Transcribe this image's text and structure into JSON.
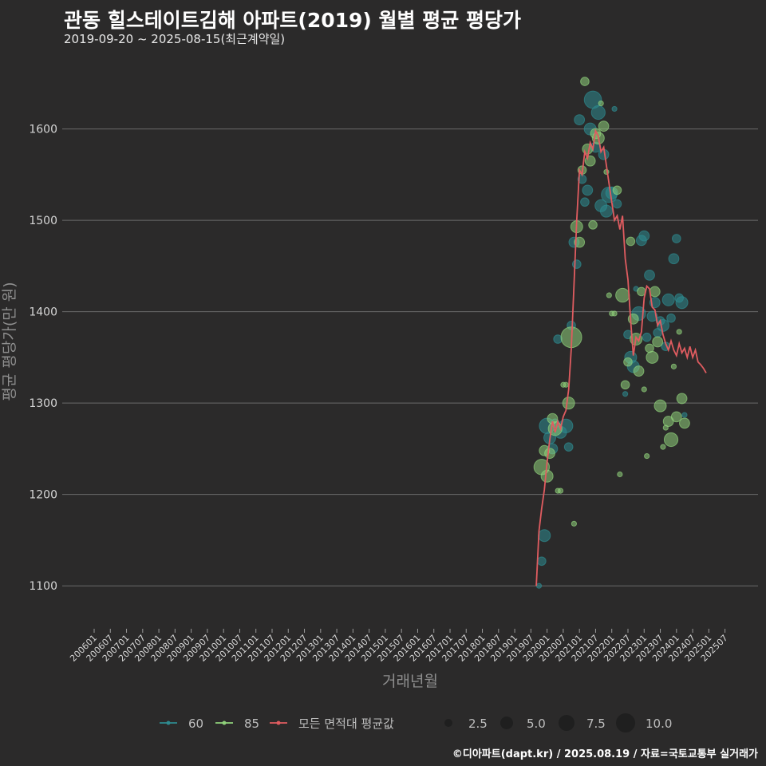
{
  "header": {
    "title": "관동 힐스테이트김해 아파트(2019) 월별 평균 평당가",
    "subtitle": "2019-09-20 ~ 2025-08-15(최근계약일)"
  },
  "caption": "©디아파트(dapt.kr) / 2025.08.19 / 자료=국토교통부 실거래가",
  "colors": {
    "background": "#2b2a2a",
    "grid": "#6b6b6b",
    "text": "#d6d6d6",
    "axis_title": "#8e8e8e",
    "series_60": "#2e8a8f",
    "series_85": "#8fd07a",
    "average": "#e05c60"
  },
  "chart_data": {
    "type": "scatter",
    "xlabel": "거래년월",
    "ylabel": "평균 평당가(만 원)",
    "ylim": [
      1060,
      1680
    ],
    "yticks": [
      1100,
      1200,
      1300,
      1400,
      1500,
      1600
    ],
    "x_start": "200601",
    "x_end": "202508",
    "xtick_labels": [
      "200601",
      "200607",
      "200701",
      "200707",
      "200801",
      "200807",
      "200901",
      "200907",
      "201001",
      "201007",
      "201101",
      "201107",
      "201201",
      "201207",
      "201301",
      "201307",
      "201401",
      "201407",
      "201501",
      "201507",
      "201601",
      "201607",
      "201701",
      "201707",
      "201801",
      "201807",
      "201901",
      "201907",
      "202001",
      "202007",
      "202101",
      "202107",
      "202201",
      "202207",
      "202301",
      "202307",
      "202401",
      "202407",
      "202501",
      "202507"
    ],
    "grid": true,
    "legend": {
      "position": "bottom",
      "series_labels": [
        "60",
        "85",
        "모든 면적대 평균값"
      ],
      "size_values": [
        2.5,
        5.0,
        7.5,
        10.0
      ]
    },
    "series": [
      {
        "name": "60",
        "points": [
          {
            "x": "201910",
            "y": 1100,
            "s": 1
          },
          {
            "x": "201911",
            "y": 1127,
            "s": 3
          },
          {
            "x": "201912",
            "y": 1155,
            "s": 5
          },
          {
            "x": "202001",
            "y": 1275,
            "s": 7
          },
          {
            "x": "202002",
            "y": 1262,
            "s": 5
          },
          {
            "x": "202003",
            "y": 1250,
            "s": 4
          },
          {
            "x": "202004",
            "y": 1278,
            "s": 3
          },
          {
            "x": "202005",
            "y": 1370,
            "s": 3
          },
          {
            "x": "202006",
            "y": 1268,
            "s": 5
          },
          {
            "x": "202008",
            "y": 1275,
            "s": 6
          },
          {
            "x": "202009",
            "y": 1252,
            "s": 3
          },
          {
            "x": "202010",
            "y": 1385,
            "s": 3
          },
          {
            "x": "202011",
            "y": 1476,
            "s": 4
          },
          {
            "x": "202012",
            "y": 1452,
            "s": 3
          },
          {
            "x": "202101",
            "y": 1610,
            "s": 4
          },
          {
            "x": "202102",
            "y": 1545,
            "s": 3
          },
          {
            "x": "202103",
            "y": 1520,
            "s": 3
          },
          {
            "x": "202104",
            "y": 1533,
            "s": 4
          },
          {
            "x": "202105",
            "y": 1600,
            "s": 5
          },
          {
            "x": "202106",
            "y": 1632,
            "s": 8
          },
          {
            "x": "202107",
            "y": 1580,
            "s": 4
          },
          {
            "x": "202108",
            "y": 1618,
            "s": 6
          },
          {
            "x": "202109",
            "y": 1516,
            "s": 5
          },
          {
            "x": "202110",
            "y": 1572,
            "s": 4
          },
          {
            "x": "202111",
            "y": 1510,
            "s": 5
          },
          {
            "x": "202112",
            "y": 1528,
            "s": 7
          },
          {
            "x": "202201",
            "y": 1530,
            "s": 5
          },
          {
            "x": "202202",
            "y": 1622,
            "s": 1
          },
          {
            "x": "202203",
            "y": 1518,
            "s": 3
          },
          {
            "x": "202206",
            "y": 1310,
            "s": 1
          },
          {
            "x": "202207",
            "y": 1375,
            "s": 3
          },
          {
            "x": "202208",
            "y": 1350,
            "s": 5
          },
          {
            "x": "202209",
            "y": 1340,
            "s": 5
          },
          {
            "x": "202210",
            "y": 1425,
            "s": 1
          },
          {
            "x": "202211",
            "y": 1398,
            "s": 6
          },
          {
            "x": "202212",
            "y": 1478,
            "s": 4
          },
          {
            "x": "202301",
            "y": 1483,
            "s": 4
          },
          {
            "x": "202302",
            "y": 1372,
            "s": 3
          },
          {
            "x": "202303",
            "y": 1440,
            "s": 4
          },
          {
            "x": "202304",
            "y": 1395,
            "s": 4
          },
          {
            "x": "202305",
            "y": 1410,
            "s": 4
          },
          {
            "x": "202306",
            "y": 1377,
            "s": 3
          },
          {
            "x": "202307",
            "y": 1390,
            "s": 3
          },
          {
            "x": "202308",
            "y": 1385,
            "s": 5
          },
          {
            "x": "202309",
            "y": 1362,
            "s": 3
          },
          {
            "x": "202310",
            "y": 1413,
            "s": 5
          },
          {
            "x": "202311",
            "y": 1393,
            "s": 3
          },
          {
            "x": "202312",
            "y": 1458,
            "s": 4
          },
          {
            "x": "202401",
            "y": 1480,
            "s": 3
          },
          {
            "x": "202402",
            "y": 1415,
            "s": 3
          },
          {
            "x": "202403",
            "y": 1410,
            "s": 5
          },
          {
            "x": "202404",
            "y": 1287,
            "s": 1
          }
        ]
      },
      {
        "name": "85",
        "points": [
          {
            "x": "201911",
            "y": 1230,
            "s": 7
          },
          {
            "x": "201912",
            "y": 1248,
            "s": 4
          },
          {
            "x": "202001",
            "y": 1220,
            "s": 5
          },
          {
            "x": "202002",
            "y": 1245,
            "s": 4
          },
          {
            "x": "202003",
            "y": 1283,
            "s": 4
          },
          {
            "x": "202004",
            "y": 1272,
            "s": 6
          },
          {
            "x": "202005",
            "y": 1204,
            "s": 1
          },
          {
            "x": "202006",
            "y": 1204,
            "s": 1
          },
          {
            "x": "202007",
            "y": 1320,
            "s": 1
          },
          {
            "x": "202008",
            "y": 1320,
            "s": 1
          },
          {
            "x": "202009",
            "y": 1300,
            "s": 5
          },
          {
            "x": "202010",
            "y": 1372,
            "s": 10
          },
          {
            "x": "202011",
            "y": 1168,
            "s": 1
          },
          {
            "x": "202012",
            "y": 1493,
            "s": 5
          },
          {
            "x": "202101",
            "y": 1476,
            "s": 4
          },
          {
            "x": "202102",
            "y": 1555,
            "s": 3
          },
          {
            "x": "202103",
            "y": 1652,
            "s": 3
          },
          {
            "x": "202104",
            "y": 1578,
            "s": 4
          },
          {
            "x": "202105",
            "y": 1565,
            "s": 4
          },
          {
            "x": "202106",
            "y": 1495,
            "s": 3
          },
          {
            "x": "202107",
            "y": 1595,
            "s": 4
          },
          {
            "x": "202108",
            "y": 1590,
            "s": 5
          },
          {
            "x": "202109",
            "y": 1628,
            "s": 1
          },
          {
            "x": "202110",
            "y": 1603,
            "s": 4
          },
          {
            "x": "202111",
            "y": 1553,
            "s": 1
          },
          {
            "x": "202112",
            "y": 1418,
            "s": 1
          },
          {
            "x": "202201",
            "y": 1398,
            "s": 1
          },
          {
            "x": "202202",
            "y": 1398,
            "s": 1
          },
          {
            "x": "202203",
            "y": 1533,
            "s": 3
          },
          {
            "x": "202204",
            "y": 1222,
            "s": 1
          },
          {
            "x": "202205",
            "y": 1418,
            "s": 6
          },
          {
            "x": "202206",
            "y": 1320,
            "s": 3
          },
          {
            "x": "202207",
            "y": 1345,
            "s": 3
          },
          {
            "x": "202208",
            "y": 1477,
            "s": 3
          },
          {
            "x": "202209",
            "y": 1392,
            "s": 4
          },
          {
            "x": "202210",
            "y": 1370,
            "s": 5
          },
          {
            "x": "202211",
            "y": 1335,
            "s": 4
          },
          {
            "x": "202212",
            "y": 1422,
            "s": 3
          },
          {
            "x": "202301",
            "y": 1315,
            "s": 1
          },
          {
            "x": "202302",
            "y": 1242,
            "s": 1
          },
          {
            "x": "202303",
            "y": 1360,
            "s": 3
          },
          {
            "x": "202304",
            "y": 1350,
            "s": 5
          },
          {
            "x": "202305",
            "y": 1422,
            "s": 4
          },
          {
            "x": "202306",
            "y": 1367,
            "s": 4
          },
          {
            "x": "202307",
            "y": 1297,
            "s": 5
          },
          {
            "x": "202308",
            "y": 1252,
            "s": 1
          },
          {
            "x": "202309",
            "y": 1273,
            "s": 1
          },
          {
            "x": "202310",
            "y": 1280,
            "s": 4
          },
          {
            "x": "202311",
            "y": 1260,
            "s": 6
          },
          {
            "x": "202312",
            "y": 1340,
            "s": 1
          },
          {
            "x": "202401",
            "y": 1285,
            "s": 4
          },
          {
            "x": "202402",
            "y": 1378,
            "s": 1
          },
          {
            "x": "202403",
            "y": 1305,
            "s": 4
          },
          {
            "x": "202404",
            "y": 1278,
            "s": 4
          }
        ]
      }
    ],
    "average": {
      "name": "모든 면적대 평균값",
      "points": [
        {
          "x": "201909",
          "y": 1100
        },
        {
          "x": "201910",
          "y": 1160
        },
        {
          "x": "201911",
          "y": 1185
        },
        {
          "x": "201912",
          "y": 1205
        },
        {
          "x": "202001",
          "y": 1235
        },
        {
          "x": "202002",
          "y": 1260
        },
        {
          "x": "202003",
          "y": 1280
        },
        {
          "x": "202004",
          "y": 1268
        },
        {
          "x": "202005",
          "y": 1280
        },
        {
          "x": "202006",
          "y": 1272
        },
        {
          "x": "202007",
          "y": 1285
        },
        {
          "x": "202008",
          "y": 1292
        },
        {
          "x": "202009",
          "y": 1315
        },
        {
          "x": "202010",
          "y": 1360
        },
        {
          "x": "202011",
          "y": 1430
        },
        {
          "x": "202012",
          "y": 1500
        },
        {
          "x": "202101",
          "y": 1555
        },
        {
          "x": "202102",
          "y": 1550
        },
        {
          "x": "202103",
          "y": 1575
        },
        {
          "x": "202104",
          "y": 1568
        },
        {
          "x": "202105",
          "y": 1585
        },
        {
          "x": "202106",
          "y": 1578
        },
        {
          "x": "202107",
          "y": 1598
        },
        {
          "x": "202108",
          "y": 1592
        },
        {
          "x": "202109",
          "y": 1575
        },
        {
          "x": "202110",
          "y": 1580
        },
        {
          "x": "202111",
          "y": 1560
        },
        {
          "x": "202112",
          "y": 1540
        },
        {
          "x": "202201",
          "y": 1520
        },
        {
          "x": "202202",
          "y": 1500
        },
        {
          "x": "202203",
          "y": 1505
        },
        {
          "x": "202204",
          "y": 1490
        },
        {
          "x": "202205",
          "y": 1505
        },
        {
          "x": "202206",
          "y": 1458
        },
        {
          "x": "202207",
          "y": 1435
        },
        {
          "x": "202208",
          "y": 1390
        },
        {
          "x": "202209",
          "y": 1352
        },
        {
          "x": "202210",
          "y": 1372
        },
        {
          "x": "202211",
          "y": 1368
        },
        {
          "x": "202212",
          "y": 1378
        },
        {
          "x": "202301",
          "y": 1415
        },
        {
          "x": "202302",
          "y": 1428
        },
        {
          "x": "202303",
          "y": 1425
        },
        {
          "x": "202304",
          "y": 1405
        },
        {
          "x": "202305",
          "y": 1402
        },
        {
          "x": "202306",
          "y": 1385
        },
        {
          "x": "202307",
          "y": 1390
        },
        {
          "x": "202308",
          "y": 1375
        },
        {
          "x": "202309",
          "y": 1365
        },
        {
          "x": "202310",
          "y": 1358
        },
        {
          "x": "202311",
          "y": 1368
        },
        {
          "x": "202312",
          "y": 1358
        },
        {
          "x": "202401",
          "y": 1352
        },
        {
          "x": "202402",
          "y": 1365
        },
        {
          "x": "202403",
          "y": 1355
        },
        {
          "x": "202404",
          "y": 1360
        },
        {
          "x": "202405",
          "y": 1350
        },
        {
          "x": "202406",
          "y": 1362
        },
        {
          "x": "202407",
          "y": 1350
        },
        {
          "x": "202408",
          "y": 1358
        },
        {
          "x": "202409",
          "y": 1345
        },
        {
          "x": "202410",
          "y": 1342
        },
        {
          "x": "202411",
          "y": 1338
        },
        {
          "x": "202412",
          "y": 1333
        }
      ]
    }
  }
}
